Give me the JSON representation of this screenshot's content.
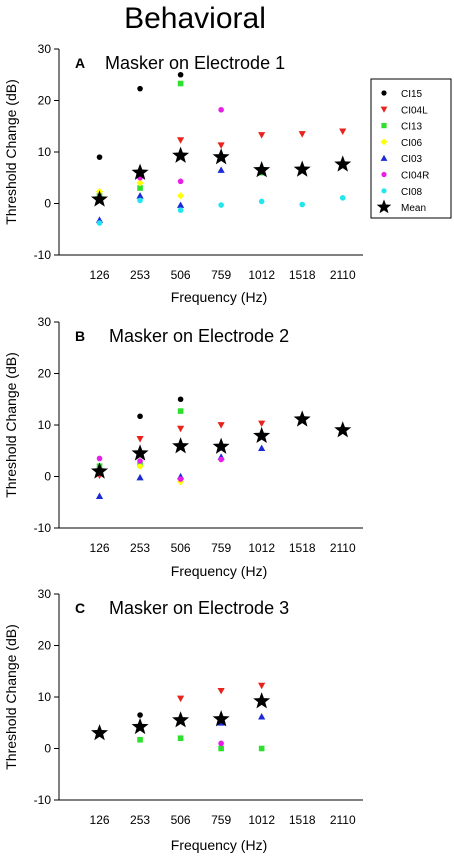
{
  "figure_title": "Behavioral",
  "legend": [
    {
      "name": "CI15",
      "color": "#000000",
      "marker": "circle"
    },
    {
      "name": "CI04L",
      "color": "#e8231c",
      "marker": "triangle-down"
    },
    {
      "name": "CI13",
      "color": "#2ee02e",
      "marker": "square"
    },
    {
      "name": "CI06",
      "color": "#ffff00",
      "marker": "diamond"
    },
    {
      "name": "CI03",
      "color": "#1a2bd6",
      "marker": "triangle-up"
    },
    {
      "name": "CI04R",
      "color": "#e81ee8",
      "marker": "circle"
    },
    {
      "name": "CI08",
      "color": "#22e6ee",
      "marker": "circle"
    },
    {
      "name": "Mean",
      "color": "#000000",
      "marker": "star"
    }
  ],
  "chart_data": [
    {
      "type": "scatter",
      "panel_letter": "A",
      "title": "Masker on Electrode 1",
      "xlabel": "Frequency (Hz)",
      "ylabel": "Threshold Change (dB)",
      "categories": [
        "126",
        "253",
        "506",
        "759",
        "1012",
        "1518",
        "2110"
      ],
      "ylim": [
        -10,
        30
      ],
      "yticks": [
        -10,
        0,
        10,
        20,
        30
      ],
      "series": [
        {
          "name": "CI15",
          "values": [
            9,
            22.3,
            25,
            null,
            null,
            null,
            null
          ]
        },
        {
          "name": "CI04L",
          "values": [
            null,
            null,
            12.3,
            11.3,
            13.3,
            13.5,
            14
          ]
        },
        {
          "name": "CI13",
          "values": [
            1.5,
            3,
            23.3,
            null,
            6,
            null,
            null
          ]
        },
        {
          "name": "CI06",
          "values": [
            2.3,
            4,
            1.5,
            null,
            null,
            null,
            null
          ]
        },
        {
          "name": "CI03",
          "values": [
            -3.2,
            1.5,
            -0.3,
            6.5,
            6.2,
            null,
            null
          ]
        },
        {
          "name": "CI04R",
          "values": [
            null,
            5,
            4.3,
            18.2,
            null,
            null,
            null
          ]
        },
        {
          "name": "CI08",
          "values": [
            -3.8,
            0.6,
            -1.3,
            -0.3,
            0.4,
            -0.2,
            1.1
          ]
        },
        {
          "name": "Mean",
          "values": [
            0.8,
            6,
            9.3,
            9,
            6.5,
            6.6,
            7.6
          ]
        }
      ]
    },
    {
      "type": "scatter",
      "panel_letter": "B",
      "title": "Masker on Electrode 2",
      "xlabel": "Frequency (Hz)",
      "ylabel": "Threshold Change (dB)",
      "categories": [
        "126",
        "253",
        "506",
        "759",
        "1012",
        "1518",
        "2110"
      ],
      "ylim": [
        -10,
        30
      ],
      "yticks": [
        -10,
        0,
        10,
        20,
        30
      ],
      "series": [
        {
          "name": "CI15",
          "values": [
            null,
            11.7,
            15,
            null,
            null,
            null,
            null
          ]
        },
        {
          "name": "CI04L",
          "values": [
            0.2,
            7.3,
            9.3,
            10,
            10.3,
            null,
            null
          ]
        },
        {
          "name": "CI13",
          "values": [
            2,
            2.3,
            12.7,
            null,
            null,
            null,
            null
          ]
        },
        {
          "name": "CI06",
          "values": [
            null,
            2,
            -1,
            null,
            null,
            null,
            null
          ]
        },
        {
          "name": "CI03",
          "values": [
            -3.8,
            -0.2,
            0,
            3.8,
            5.5,
            null,
            null
          ]
        },
        {
          "name": "CI04R",
          "values": [
            3.5,
            3,
            -0.5,
            3.3,
            null,
            null,
            null
          ]
        },
        {
          "name": "CI08",
          "values": [
            null,
            null,
            null,
            null,
            null,
            null,
            null
          ]
        },
        {
          "name": "Mean",
          "values": [
            1,
            4.5,
            5.9,
            5.8,
            7.9,
            11.1,
            9
          ]
        }
      ]
    },
    {
      "type": "scatter",
      "panel_letter": "C",
      "title": "Masker on Electrode 3",
      "xlabel": "Frequency (Hz)",
      "ylabel": "Threshold Change (dB)",
      "categories": [
        "126",
        "253",
        "506",
        "759",
        "1012",
        "1518",
        "2110"
      ],
      "ylim": [
        -10,
        30
      ],
      "yticks": [
        -10,
        0,
        10,
        20,
        30
      ],
      "series": [
        {
          "name": "CI15",
          "values": [
            null,
            6.5,
            null,
            null,
            null,
            null,
            null
          ]
        },
        {
          "name": "CI04L",
          "values": [
            null,
            null,
            9.7,
            11.2,
            12.2,
            null,
            null
          ]
        },
        {
          "name": "CI13",
          "values": [
            null,
            1.7,
            2,
            0,
            0,
            null,
            null
          ]
        },
        {
          "name": "CI06",
          "values": [
            null,
            null,
            null,
            null,
            null,
            null,
            null
          ]
        },
        {
          "name": "CI03",
          "values": [
            null,
            null,
            null,
            5,
            6.2,
            null,
            null
          ]
        },
        {
          "name": "CI04R",
          "values": [
            null,
            null,
            null,
            1,
            null,
            null,
            null
          ]
        },
        {
          "name": "CI08",
          "values": [
            null,
            null,
            null,
            null,
            null,
            null,
            null
          ]
        },
        {
          "name": "Mean",
          "values": [
            3,
            4.2,
            5.5,
            5.7,
            9.2,
            null,
            null
          ]
        }
      ]
    }
  ]
}
